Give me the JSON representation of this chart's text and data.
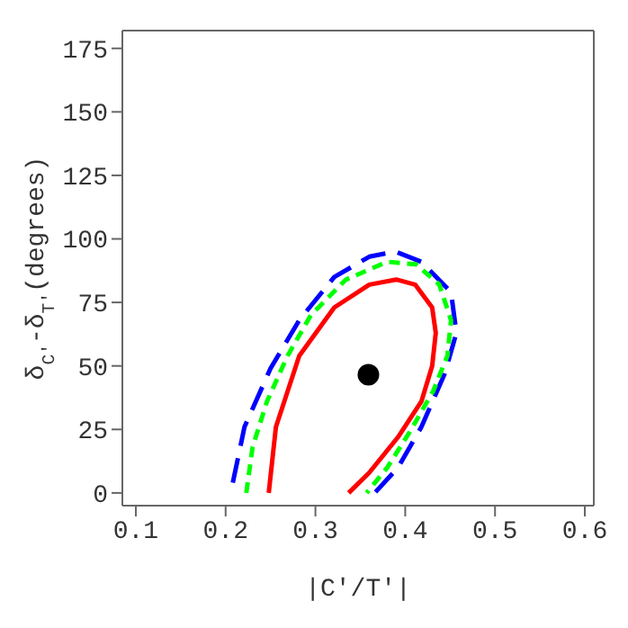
{
  "chart_data": {
    "type": "line",
    "xlabel": "|C′/T′|",
    "ylabel": "δ$_{C'}$-δ$_{T'}$(degrees)",
    "xlim": [
      0.085,
      0.61
    ],
    "ylim": [
      -5,
      182
    ],
    "xticks": [
      {
        "value": 0.1,
        "label": "0.1"
      },
      {
        "value": 0.2,
        "label": "0.2"
      },
      {
        "value": 0.3,
        "label": "0.3"
      },
      {
        "value": 0.4,
        "label": "0.4"
      },
      {
        "value": 0.5,
        "label": "0.5"
      },
      {
        "value": 0.6,
        "label": "0.6"
      }
    ],
    "yticks": [
      0,
      25,
      50,
      75,
      100,
      125,
      150,
      175
    ],
    "marker": "none",
    "series": [
      {
        "color": "#0000ff",
        "line_style": "dashed",
        "x": [
          0.208,
          0.221,
          0.25,
          0.282,
          0.321,
          0.36,
          0.389,
          0.418,
          0.451,
          0.457,
          0.444,
          0.418,
          0.392,
          0.366
        ],
        "values": [
          4,
          26,
          49,
          68,
          85,
          93,
          95,
          91,
          79,
          63,
          47,
          26,
          10,
          0
        ]
      },
      {
        "color": "#00ff00",
        "line_style": "dotted",
        "x": [
          0.223,
          0.23,
          0.246,
          0.269,
          0.295,
          0.334,
          0.38,
          0.412,
          0.438,
          0.451,
          0.447,
          0.431,
          0.405,
          0.38,
          0.357
        ],
        "values": [
          0,
          18,
          36,
          54,
          70,
          84,
          91,
          90,
          82,
          68,
          54,
          40,
          24,
          10,
          0
        ]
      },
      {
        "color": "#ff0000",
        "line_style": "solid",
        "x": [
          0.248,
          0.256,
          0.282,
          0.321,
          0.36,
          0.39,
          0.411,
          0.43,
          0.434,
          0.43,
          0.418,
          0.392,
          0.36,
          0.337
        ],
        "values": [
          0,
          26,
          54,
          73,
          82,
          84,
          82,
          73,
          63,
          50,
          36,
          22,
          8,
          0
        ]
      },
      {
        "type": "scatter",
        "color": "#000000",
        "marker": "circle",
        "x": [
          0.359
        ],
        "values": [
          46.5
        ]
      }
    ]
  }
}
